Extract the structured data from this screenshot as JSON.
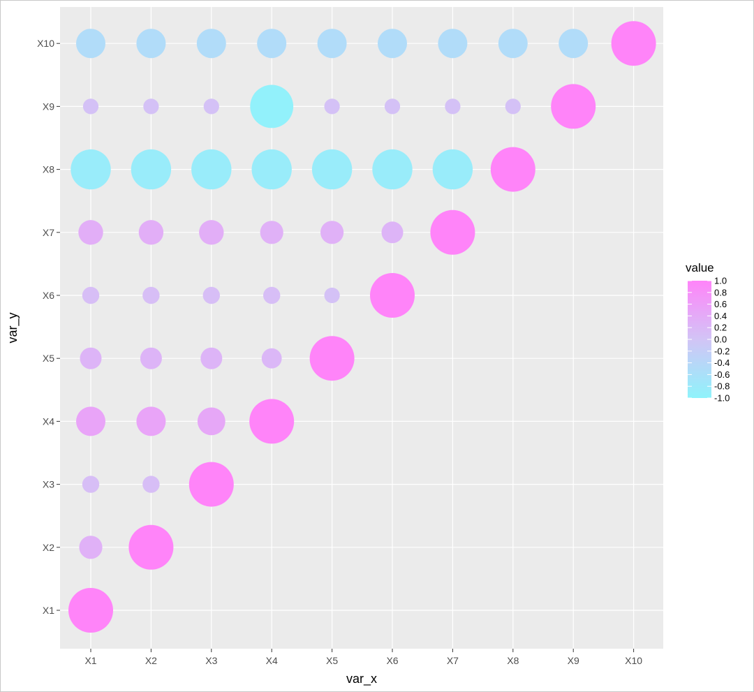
{
  "chart_data": {
    "type": "scatter",
    "subtype": "correlation-bubble-matrix",
    "title": "",
    "xlabel": "var_x",
    "ylabel": "var_y",
    "x_categories": [
      "X1",
      "X2",
      "X3",
      "X4",
      "X5",
      "X6",
      "X7",
      "X8",
      "X9",
      "X10"
    ],
    "y_categories": [
      "X1",
      "X2",
      "X3",
      "X4",
      "X5",
      "X6",
      "X7",
      "X8",
      "X9",
      "X10"
    ],
    "color_scale": {
      "title": "value",
      "low_color": "#8ff3fb",
      "mid_color": "#d2c4f6",
      "high_color": "#ff84f9",
      "min": -1.0,
      "max": 1.0,
      "ticks": [
        "1.0",
        "0.8",
        "0.6",
        "0.4",
        "0.2",
        "0.0",
        "-0.2",
        "-0.4",
        "-0.6",
        "-0.8",
        "-1.0"
      ]
    },
    "grid": true,
    "panel_color": "#ebebeb",
    "grid_color": "#ffffff",
    "points": [
      {
        "x": "X1",
        "y": "X1",
        "value": 1.0
      },
      {
        "x": "X1",
        "y": "X2",
        "value": 0.3
      },
      {
        "x": "X2",
        "y": "X2",
        "value": 1.0
      },
      {
        "x": "X1",
        "y": "X3",
        "value": 0.1
      },
      {
        "x": "X2",
        "y": "X3",
        "value": 0.1
      },
      {
        "x": "X3",
        "y": "X3",
        "value": 1.0
      },
      {
        "x": "X1",
        "y": "X4",
        "value": 0.5
      },
      {
        "x": "X2",
        "y": "X4",
        "value": 0.5
      },
      {
        "x": "X3",
        "y": "X4",
        "value": 0.45
      },
      {
        "x": "X4",
        "y": "X4",
        "value": 1.0
      },
      {
        "x": "X1",
        "y": "X5",
        "value": 0.25
      },
      {
        "x": "X2",
        "y": "X5",
        "value": 0.25
      },
      {
        "x": "X3",
        "y": "X5",
        "value": 0.25
      },
      {
        "x": "X4",
        "y": "X5",
        "value": 0.2
      },
      {
        "x": "X5",
        "y": "X5",
        "value": 1.0
      },
      {
        "x": "X1",
        "y": "X6",
        "value": 0.1
      },
      {
        "x": "X2",
        "y": "X6",
        "value": 0.1
      },
      {
        "x": "X3",
        "y": "X6",
        "value": 0.1
      },
      {
        "x": "X4",
        "y": "X6",
        "value": 0.1
      },
      {
        "x": "X5",
        "y": "X6",
        "value": 0.05
      },
      {
        "x": "X6",
        "y": "X6",
        "value": 1.0
      },
      {
        "x": "X1",
        "y": "X7",
        "value": 0.35
      },
      {
        "x": "X2",
        "y": "X7",
        "value": 0.35
      },
      {
        "x": "X3",
        "y": "X7",
        "value": 0.35
      },
      {
        "x": "X4",
        "y": "X7",
        "value": 0.3
      },
      {
        "x": "X5",
        "y": "X7",
        "value": 0.3
      },
      {
        "x": "X6",
        "y": "X7",
        "value": 0.25
      },
      {
        "x": "X7",
        "y": "X7",
        "value": 1.0
      },
      {
        "x": "X1",
        "y": "X8",
        "value": -0.85
      },
      {
        "x": "X2",
        "y": "X8",
        "value": -0.85
      },
      {
        "x": "X3",
        "y": "X8",
        "value": -0.85
      },
      {
        "x": "X4",
        "y": "X8",
        "value": -0.85
      },
      {
        "x": "X5",
        "y": "X8",
        "value": -0.85
      },
      {
        "x": "X6",
        "y": "X8",
        "value": -0.85
      },
      {
        "x": "X7",
        "y": "X8",
        "value": -0.85
      },
      {
        "x": "X8",
        "y": "X8",
        "value": 1.0
      },
      {
        "x": "X1",
        "y": "X9",
        "value": 0.05
      },
      {
        "x": "X2",
        "y": "X9",
        "value": 0.05
      },
      {
        "x": "X3",
        "y": "X9",
        "value": 0.05
      },
      {
        "x": "X4",
        "y": "X9",
        "value": -0.95
      },
      {
        "x": "X5",
        "y": "X9",
        "value": 0.05
      },
      {
        "x": "X6",
        "y": "X9",
        "value": 0.05
      },
      {
        "x": "X7",
        "y": "X9",
        "value": 0.05
      },
      {
        "x": "X8",
        "y": "X9",
        "value": 0.05
      },
      {
        "x": "X9",
        "y": "X9",
        "value": 1.0
      },
      {
        "x": "X1",
        "y": "X10",
        "value": -0.5
      },
      {
        "x": "X2",
        "y": "X10",
        "value": -0.5
      },
      {
        "x": "X3",
        "y": "X10",
        "value": -0.5
      },
      {
        "x": "X4",
        "y": "X10",
        "value": -0.5
      },
      {
        "x": "X5",
        "y": "X10",
        "value": -0.5
      },
      {
        "x": "X6",
        "y": "X10",
        "value": -0.5
      },
      {
        "x": "X7",
        "y": "X10",
        "value": -0.5
      },
      {
        "x": "X8",
        "y": "X10",
        "value": -0.5
      },
      {
        "x": "X9",
        "y": "X10",
        "value": -0.5
      },
      {
        "x": "X10",
        "y": "X10",
        "value": 1.0
      }
    ]
  }
}
